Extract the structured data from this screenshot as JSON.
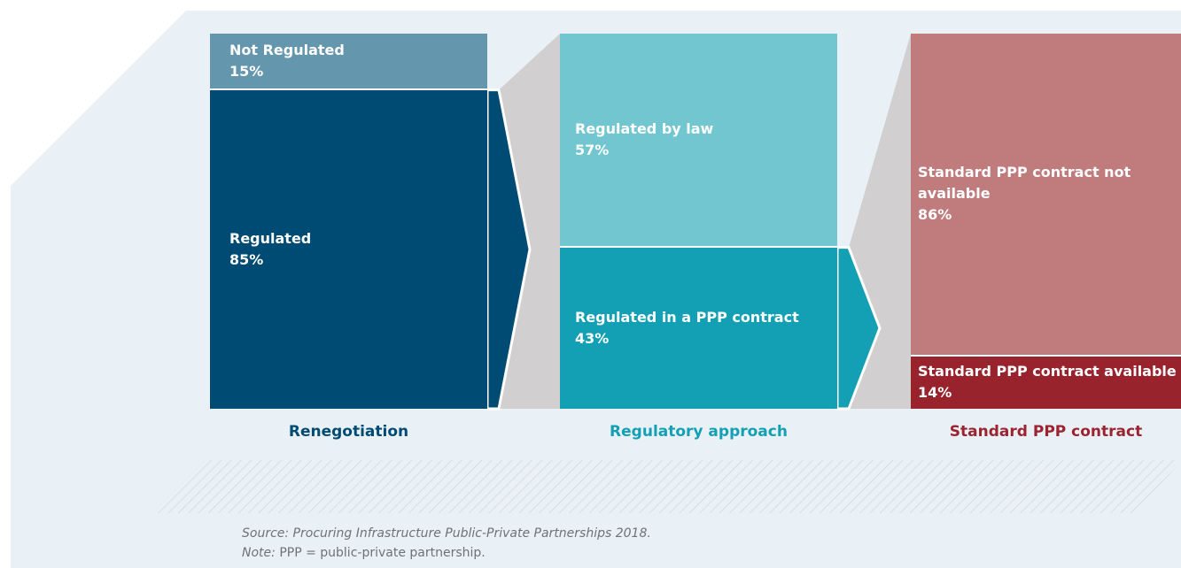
{
  "chart_data": {
    "type": "stacked-columns",
    "columns": [
      {
        "name": "Renegotiation",
        "color": "#004b73",
        "categories": [
          "Not Regulated",
          "Regulated"
        ],
        "values": [
          15,
          85
        ],
        "value_labels": [
          "15%",
          "85%"
        ],
        "colors": [
          "#6496ae",
          "#004b73"
        ]
      },
      {
        "name": "Regulatory approach",
        "color": "#13a0b4",
        "categories": [
          "Regulated by law",
          "Regulated in a PPP contract"
        ],
        "values": [
          57,
          43
        ],
        "value_labels": [
          "57%",
          "43%"
        ],
        "colors": [
          "#71c6d0",
          "#13a0b4"
        ]
      },
      {
        "name": "Standard PPP contract",
        "color": "#9b2430",
        "categories": [
          "Standard PPP contract not available",
          "Standard PPP contract available"
        ],
        "values": [
          86,
          14
        ],
        "value_labels": [
          "86%",
          "14%"
        ],
        "colors": [
          "#c07b7d",
          "#98232c"
        ]
      }
    ],
    "source": "Source: Procuring Infrastructure Public-Private Partnerships 2018.",
    "note": {
      "label": "Note:",
      "text": "PPP = public-private partnership."
    }
  }
}
